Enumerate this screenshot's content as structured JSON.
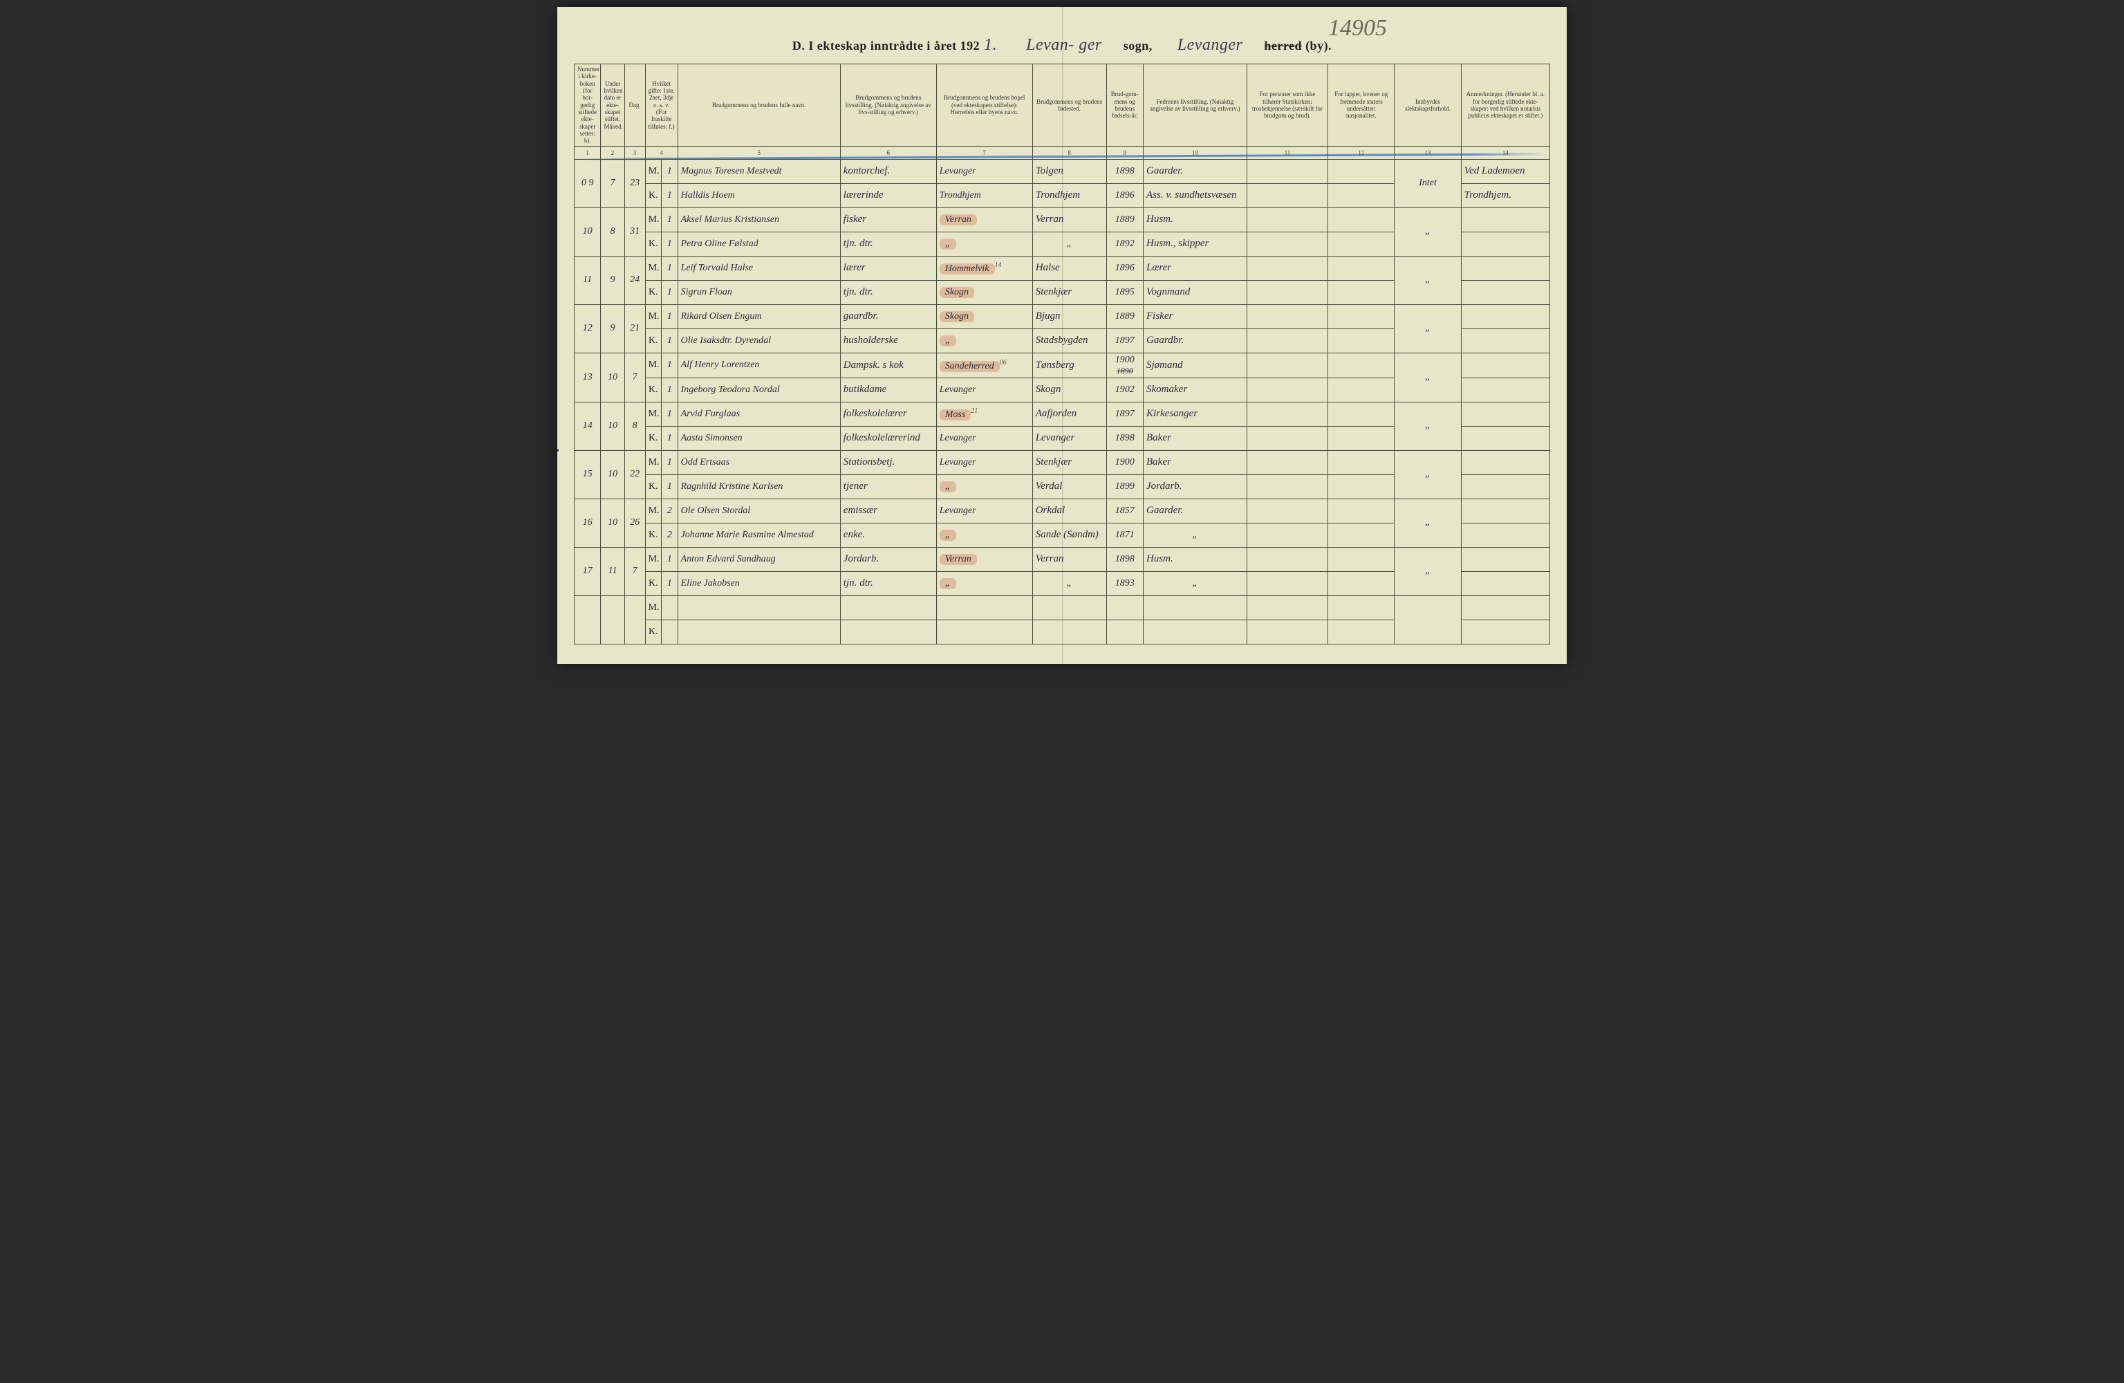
{
  "header": {
    "title_prefix": "D.  I ekteskap inntrådte i året 192",
    "year_suffix_hand": "1.",
    "sogn_hand": "Levan- ger",
    "sogn_label": "sogn,",
    "herred_hand": "Levanger",
    "herred_struck": "herred",
    "by_label": "(by).",
    "pencil_topnum": "14905"
  },
  "columns": [
    {
      "n": "1",
      "label": "Nummer i kirke-boken (for bor-gerlig stiftede ekte-skaper settes: b)."
    },
    {
      "n": "2",
      "label": "Under hvilken dato er ekte-skapet stiftet.  Måned."
    },
    {
      "n": "3",
      "label": "Dag."
    },
    {
      "n": "4",
      "label": "Hvilket gifte: 1ste, 2net, 3dje o. s. v. (For fraskilte tilføies: f.)"
    },
    {
      "n": "5",
      "label": "Brudgommens og brudens fulle navn."
    },
    {
      "n": "6",
      "label": "Brudgommens og brudens livsstilling. (Nøiaktig angivelse av livs-stilling og erhverv.)"
    },
    {
      "n": "7",
      "label": "Brudgommens og brudens bopel (ved ekteskapets stiftelse): Herredets eller byens navn."
    },
    {
      "n": "8",
      "label": "Brudgommens og brudens fødested."
    },
    {
      "n": "9",
      "label": "Brud-gom-mens og brudens fødsels-år."
    },
    {
      "n": "10",
      "label": "Fedrenes livsstilling. (Nøiaktig angivelse av livsstilling og erhverv.)"
    },
    {
      "n": "11",
      "label": "For personer som ikke tilhører Statskirken: trosbekjennelse (særskilt for brudgom og brud)."
    },
    {
      "n": "12",
      "label": "For lapper, kvener og fremmede staters undersåtter: nasjonalitet."
    },
    {
      "n": "13",
      "label": "Innbyrdes slektskapsforhold."
    },
    {
      "n": "14",
      "label": "Anmerkninger. (Herunder bl. a. for borgerlig stiftede ekte-skaper: ved hvilken notarius publicus ekteskapet er stiftet.)"
    }
  ],
  "rows": [
    {
      "num": "9",
      "prefix": "0",
      "month": "7",
      "day": "23",
      "m": {
        "gifte": "1",
        "name": "Magnus Toresen Mestvedt",
        "occ": "kontorchef.",
        "home": "Levanger",
        "birth": "Tolgen",
        "year": "1898",
        "father": "Gaarder.",
        "c13": "Intet",
        "c14": "Ved Lademoen"
      },
      "k": {
        "gifte": "1",
        "name": "Halldis Hoem",
        "occ": "lærerinde",
        "home": "Trondhjem",
        "birth": "Trondhjem",
        "year": "1896",
        "father": "Ass. v. sundhetsvæsen",
        "c14": "Trondhjem."
      }
    },
    {
      "num": "10",
      "month": "8",
      "day": "31",
      "m": {
        "gifte": "1",
        "name": "Aksel Marius Kristiansen",
        "occ": "fisker",
        "home": "Verran",
        "birth": "Verran",
        "year": "1889",
        "father": "Husm.",
        "c13": "\""
      },
      "k": {
        "gifte": "1",
        "name": "Petra Oline Følstad",
        "occ": "tjn. dtr.",
        "home": "\"",
        "birth": "\"",
        "year": "1892",
        "father": "Husm., skipper"
      }
    },
    {
      "num": "11",
      "month": "9",
      "day": "24",
      "m": {
        "gifte": "1",
        "name": "Leif Torvald Halse",
        "occ": "lærer",
        "home": "Hommelvik",
        "home_sup": "14",
        "birth": "Halse",
        "year": "1896",
        "father": "Lærer",
        "c13": "\""
      },
      "k": {
        "gifte": "1",
        "name": "Sigrun Floan",
        "occ": "tjn. dtr.",
        "home": "Skogn",
        "birth": "Stenkjær",
        "year": "1895",
        "father": "Vognmand"
      }
    },
    {
      "num": "12",
      "month": "9",
      "day": "21",
      "m": {
        "gifte": "1",
        "name": "Rikard Olsen Engum",
        "occ": "gaardbr.",
        "home": "Skogn",
        "birth": "Bjugn",
        "year": "1889",
        "father": "Fisker",
        "c13": "\""
      },
      "k": {
        "gifte": "1",
        "name": "Olie Isaksdtr. Dyrendal",
        "occ": "husholderske",
        "home": "\"",
        "birth": "Stadsbygden",
        "year": "1897",
        "father": "Gaardbr."
      }
    },
    {
      "num": "13",
      "month": "10",
      "day": "7",
      "m": {
        "gifte": "1",
        "name": "Alf Henry Lorentzen",
        "occ": "Dampsk. s kok",
        "home": "Sandeherred",
        "home_sup": "06",
        "birth": "Tønsberg",
        "year": "1900",
        "year_struck": "1890",
        "father": "Sjømand",
        "c13": "\""
      },
      "k": {
        "gifte": "1",
        "name": "Ingeborg Teodora Nordal",
        "occ": "butikdame",
        "home": "Levanger",
        "birth": "Skogn",
        "year": "1902",
        "father": "Skomaker"
      }
    },
    {
      "num": "14",
      "month": "10",
      "day": "8",
      "m": {
        "gifte": "1",
        "name": "Arvid Furglaas",
        "occ": "folkeskolelærer",
        "home": "Moss",
        "home_sup": "21",
        "birth": "Aafjorden",
        "year": "1897",
        "father": "Kirkesanger",
        "c13": "\""
      },
      "k": {
        "gifte": "1",
        "name": "Aasta Simonsen",
        "occ": "folkeskolelærerind",
        "home": "Levanger",
        "birth": "Levanger",
        "year": "1898",
        "father": "Baker"
      }
    },
    {
      "num": "15",
      "month": "10",
      "day": "22",
      "m": {
        "gifte": "1",
        "name": "Odd Ertsaas",
        "occ": "Stationsbetj.",
        "home": "Levanger",
        "birth": "Stenkjær",
        "year": "1900",
        "father": "Baker",
        "c13": "\""
      },
      "k": {
        "gifte": "1",
        "name": "Ragnhild Kristine Karlsen",
        "occ": "tjener",
        "home": "\"",
        "birth": "Verdal",
        "year": "1899",
        "father": "Jordarb."
      }
    },
    {
      "num": "16",
      "month": "10",
      "day": "26",
      "m": {
        "gifte": "2",
        "name": "Ole Olsen Stordal",
        "occ": "emissær",
        "home": "Levanger",
        "birth": "Orkdal",
        "year": "1857",
        "father": "Gaarder.",
        "c13": "\""
      },
      "k": {
        "gifte": "2",
        "name": "Johanne Marie Rasmine Almestad",
        "occ": "enke.",
        "home": "\"",
        "birth": "Sande (Søndm)",
        "year": "1871",
        "father": "\""
      }
    },
    {
      "num": "17",
      "month": "11",
      "day": "7",
      "m": {
        "gifte": "1",
        "name": "Anton Edvard Sandhaug",
        "occ": "Jordarb.",
        "home": "Verran",
        "birth": "Verran",
        "year": "1898",
        "father": "Husm.",
        "c13": "\""
      },
      "k": {
        "gifte": "1",
        "name": "Eline Jakobsen",
        "occ": "tjn. dtr.",
        "home": "\"",
        "birth": "\"",
        "year": "1893",
        "father": "\""
      }
    }
  ],
  "style": {
    "page_bg": "#e8e6c8",
    "ink": "#2b2b40",
    "border": "#4a4a3a",
    "blue_line": "#3c78c8",
    "red_smear": "rgba(210,110,80,0.35)"
  }
}
